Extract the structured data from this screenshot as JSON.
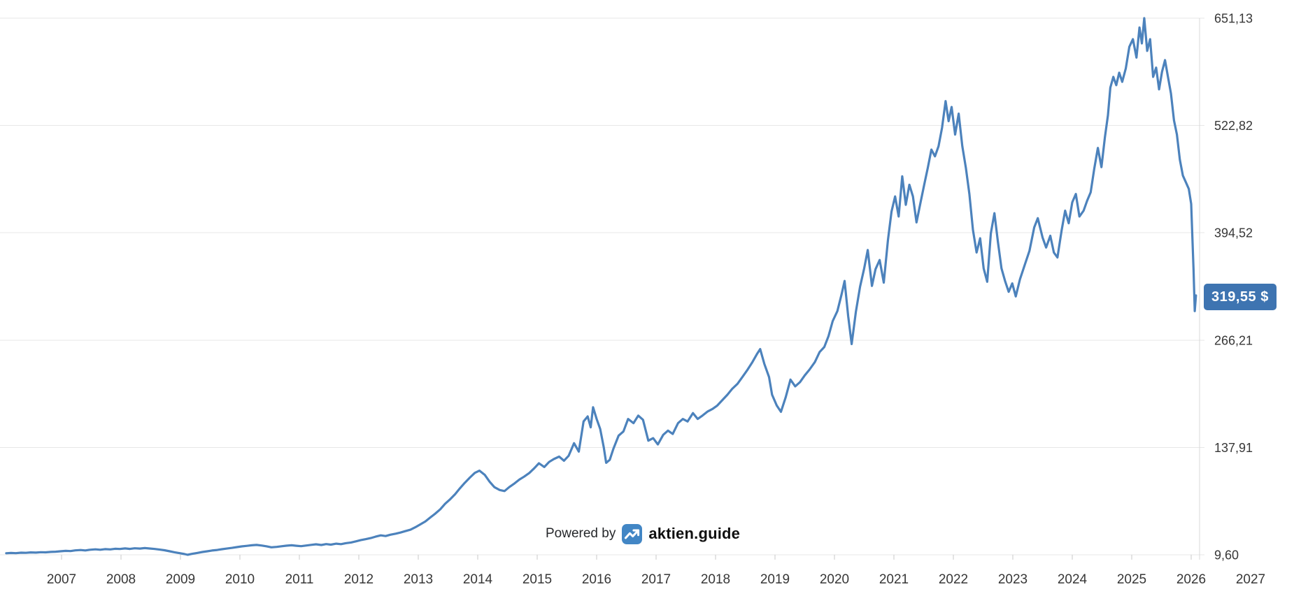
{
  "watermark": {
    "powered_by_label": "Powered by",
    "brand": "aktien.guide"
  },
  "chart_data": {
    "type": "line",
    "title": "",
    "legend": "none",
    "grid": "horizontal-only",
    "last_price_label": "319,55 $",
    "last_price_value": 319.55,
    "x_axis": {
      "tick_labels": [
        "2007",
        "2008",
        "2009",
        "2010",
        "2011",
        "2012",
        "2013",
        "2014",
        "2015",
        "2016",
        "2017",
        "2018",
        "2019",
        "2020",
        "2021",
        "2022",
        "2023",
        "2024",
        "2025",
        "2026",
        "2027"
      ],
      "range_years": [
        2006.0,
        2026.14
      ]
    },
    "y_axis": {
      "side": "right",
      "tick_values": [
        9.6,
        137.91,
        266.21,
        394.52,
        522.82,
        651.13
      ],
      "tick_labels": [
        "9,60",
        "137,91",
        "266,21",
        "394,52",
        "522,82",
        "651,13"
      ]
    },
    "colors": {
      "line": "#4c82bc",
      "badge_bg": "#3e74b1",
      "grid": "#e7e7e7",
      "axis_line": "#d9d9d9",
      "tick": "#c9c9c9",
      "label": "#373737",
      "icon_bg": "#4286c5",
      "icon_glyph": "#ffffff",
      "background": "#ffffff"
    },
    "series": {
      "name": "price",
      "points": [
        [
          2006.07,
          11.4
        ],
        [
          2006.15,
          11.8
        ],
        [
          2006.23,
          11.5
        ],
        [
          2006.32,
          12.1
        ],
        [
          2006.4,
          11.9
        ],
        [
          2006.48,
          12.4
        ],
        [
          2006.57,
          12.2
        ],
        [
          2006.65,
          12.7
        ],
        [
          2006.73,
          12.5
        ],
        [
          2006.82,
          13.0
        ],
        [
          2006.9,
          13.3
        ],
        [
          2006.98,
          13.8
        ],
        [
          2007.07,
          14.3
        ],
        [
          2007.15,
          14.0
        ],
        [
          2007.23,
          14.9
        ],
        [
          2007.32,
          15.3
        ],
        [
          2007.4,
          14.8
        ],
        [
          2007.48,
          15.6
        ],
        [
          2007.57,
          16.1
        ],
        [
          2007.65,
          15.6
        ],
        [
          2007.73,
          16.4
        ],
        [
          2007.82,
          16.0
        ],
        [
          2007.9,
          16.8
        ],
        [
          2007.98,
          16.5
        ],
        [
          2008.07,
          17.2
        ],
        [
          2008.15,
          16.6
        ],
        [
          2008.23,
          17.4
        ],
        [
          2008.32,
          17.0
        ],
        [
          2008.4,
          17.6
        ],
        [
          2008.48,
          17.1
        ],
        [
          2008.57,
          16.5
        ],
        [
          2008.65,
          15.8
        ],
        [
          2008.73,
          15.0
        ],
        [
          2008.82,
          13.8
        ],
        [
          2008.9,
          12.6
        ],
        [
          2008.98,
          11.6
        ],
        [
          2009.07,
          10.4
        ],
        [
          2009.12,
          9.6
        ],
        [
          2009.2,
          10.8
        ],
        [
          2009.28,
          11.8
        ],
        [
          2009.37,
          12.9
        ],
        [
          2009.45,
          13.8
        ],
        [
          2009.53,
          14.7
        ],
        [
          2009.62,
          15.4
        ],
        [
          2009.7,
          16.3
        ],
        [
          2009.78,
          17.0
        ],
        [
          2009.87,
          17.9
        ],
        [
          2009.95,
          18.8
        ],
        [
          2010.03,
          19.6
        ],
        [
          2010.12,
          20.3
        ],
        [
          2010.2,
          21.0
        ],
        [
          2010.28,
          21.4
        ],
        [
          2010.37,
          20.6
        ],
        [
          2010.45,
          19.7
        ],
        [
          2010.53,
          18.5
        ],
        [
          2010.62,
          19.0
        ],
        [
          2010.7,
          19.8
        ],
        [
          2010.78,
          20.5
        ],
        [
          2010.87,
          21.0
        ],
        [
          2010.95,
          20.4
        ],
        [
          2011.03,
          19.9
        ],
        [
          2011.12,
          20.7
        ],
        [
          2011.2,
          21.5
        ],
        [
          2011.28,
          22.1
        ],
        [
          2011.37,
          21.3
        ],
        [
          2011.45,
          22.4
        ],
        [
          2011.53,
          21.7
        ],
        [
          2011.62,
          22.9
        ],
        [
          2011.7,
          22.3
        ],
        [
          2011.78,
          23.5
        ],
        [
          2011.87,
          24.3
        ],
        [
          2011.95,
          25.6
        ],
        [
          2012.03,
          27.1
        ],
        [
          2012.12,
          28.3
        ],
        [
          2012.2,
          29.6
        ],
        [
          2012.28,
          31.2
        ],
        [
          2012.37,
          32.8
        ],
        [
          2012.45,
          32.0
        ],
        [
          2012.53,
          33.6
        ],
        [
          2012.62,
          34.8
        ],
        [
          2012.7,
          36.2
        ],
        [
          2012.78,
          37.8
        ],
        [
          2012.87,
          39.6
        ],
        [
          2012.95,
          42.5
        ],
        [
          2013.03,
          45.8
        ],
        [
          2013.12,
          49.5
        ],
        [
          2013.2,
          54.0
        ],
        [
          2013.28,
          58.5
        ],
        [
          2013.37,
          64.0
        ],
        [
          2013.45,
          70.5
        ],
        [
          2013.53,
          75.5
        ],
        [
          2013.62,
          82.0
        ],
        [
          2013.7,
          89.0
        ],
        [
          2013.78,
          95.5
        ],
        [
          2013.87,
          102.0
        ],
        [
          2013.95,
          107.5
        ],
        [
          2014.03,
          110.2
        ],
        [
          2014.12,
          105.0
        ],
        [
          2014.2,
          97.0
        ],
        [
          2014.28,
          90.5
        ],
        [
          2014.37,
          87.0
        ],
        [
          2014.45,
          85.8
        ],
        [
          2014.53,
          90.5
        ],
        [
          2014.62,
          95.0
        ],
        [
          2014.7,
          99.5
        ],
        [
          2014.78,
          103.0
        ],
        [
          2014.87,
          107.5
        ],
        [
          2014.95,
          113.0
        ],
        [
          2015.03,
          119.0
        ],
        [
          2015.12,
          114.5
        ],
        [
          2015.2,
          120.5
        ],
        [
          2015.28,
          124.0
        ],
        [
          2015.37,
          127.0
        ],
        [
          2015.45,
          122.0
        ],
        [
          2015.53,
          128.0
        ],
        [
          2015.62,
          143.0
        ],
        [
          2015.7,
          133.0
        ],
        [
          2015.78,
          169.0
        ],
        [
          2015.85,
          175.0
        ],
        [
          2015.9,
          162.0
        ],
        [
          2015.94,
          186.0
        ],
        [
          2016.0,
          172.0
        ],
        [
          2016.06,
          160.0
        ],
        [
          2016.12,
          138.0
        ],
        [
          2016.16,
          119.5
        ],
        [
          2016.22,
          123.0
        ],
        [
          2016.28,
          136.0
        ],
        [
          2016.37,
          152.0
        ],
        [
          2016.45,
          157.0
        ],
        [
          2016.53,
          172.0
        ],
        [
          2016.62,
          167.0
        ],
        [
          2016.7,
          176.0
        ],
        [
          2016.78,
          171.0
        ],
        [
          2016.87,
          146.0
        ],
        [
          2016.95,
          149.0
        ],
        [
          2017.03,
          141.5
        ],
        [
          2017.12,
          153.0
        ],
        [
          2017.2,
          158.0
        ],
        [
          2017.28,
          154.0
        ],
        [
          2017.37,
          167.0
        ],
        [
          2017.45,
          172.0
        ],
        [
          2017.53,
          169.0
        ],
        [
          2017.62,
          179.0
        ],
        [
          2017.7,
          172.0
        ],
        [
          2017.78,
          176.0
        ],
        [
          2017.87,
          181.0
        ],
        [
          2017.95,
          184.0
        ],
        [
          2018.03,
          188.0
        ],
        [
          2018.12,
          195.0
        ],
        [
          2018.2,
          201.0
        ],
        [
          2018.28,
          208.0
        ],
        [
          2018.37,
          214.0
        ],
        [
          2018.45,
          222.0
        ],
        [
          2018.53,
          230.0
        ],
        [
          2018.62,
          240.0
        ],
        [
          2018.7,
          250.0
        ],
        [
          2018.75,
          255.5
        ],
        [
          2018.82,
          238.0
        ],
        [
          2018.9,
          222.0
        ],
        [
          2018.95,
          201.0
        ],
        [
          2019.03,
          188.0
        ],
        [
          2019.1,
          180.5
        ],
        [
          2019.18,
          198.0
        ],
        [
          2019.26,
          219.0
        ],
        [
          2019.34,
          211.0
        ],
        [
          2019.42,
          216.0
        ],
        [
          2019.5,
          224.0
        ],
        [
          2019.58,
          231.0
        ],
        [
          2019.67,
          240.0
        ],
        [
          2019.75,
          252.0
        ],
        [
          2019.83,
          258.0
        ],
        [
          2019.9,
          271.0
        ],
        [
          2019.97,
          289.0
        ],
        [
          2020.05,
          301.0
        ],
        [
          2020.12,
          321.0
        ],
        [
          2020.17,
          337.0
        ],
        [
          2020.23,
          295.0
        ],
        [
          2020.29,
          261.5
        ],
        [
          2020.36,
          300.0
        ],
        [
          2020.43,
          330.0
        ],
        [
          2020.5,
          352.0
        ],
        [
          2020.56,
          374.0
        ],
        [
          2020.63,
          331.0
        ],
        [
          2020.69,
          351.0
        ],
        [
          2020.76,
          362.0
        ],
        [
          2020.83,
          335.0
        ],
        [
          2020.9,
          386.0
        ],
        [
          2020.96,
          420.0
        ],
        [
          2021.02,
          438.0
        ],
        [
          2021.08,
          414.0
        ],
        [
          2021.14,
          462.0
        ],
        [
          2021.2,
          428.0
        ],
        [
          2021.26,
          452.0
        ],
        [
          2021.32,
          438.0
        ],
        [
          2021.38,
          407.0
        ],
        [
          2021.44,
          428.0
        ],
        [
          2021.51,
          452.0
        ],
        [
          2021.57,
          472.0
        ],
        [
          2021.63,
          494.0
        ],
        [
          2021.69,
          486.0
        ],
        [
          2021.75,
          498.0
        ],
        [
          2021.81,
          520.0
        ],
        [
          2021.87,
          552.0
        ],
        [
          2021.92,
          528.0
        ],
        [
          2021.97,
          545.0
        ],
        [
          2022.03,
          512.0
        ],
        [
          2022.09,
          537.0
        ],
        [
          2022.15,
          498.0
        ],
        [
          2022.21,
          472.0
        ],
        [
          2022.27,
          441.0
        ],
        [
          2022.33,
          398.0
        ],
        [
          2022.39,
          371.0
        ],
        [
          2022.45,
          388.0
        ],
        [
          2022.51,
          352.0
        ],
        [
          2022.57,
          336.0
        ],
        [
          2022.63,
          394.0
        ],
        [
          2022.69,
          418.0
        ],
        [
          2022.75,
          383.0
        ],
        [
          2022.81,
          352.0
        ],
        [
          2022.87,
          337.0
        ],
        [
          2022.93,
          324.0
        ],
        [
          2022.99,
          334.0
        ],
        [
          2023.05,
          318.5
        ],
        [
          2023.12,
          339.0
        ],
        [
          2023.2,
          356.0
        ],
        [
          2023.28,
          373.0
        ],
        [
          2023.36,
          401.0
        ],
        [
          2023.42,
          412.0
        ],
        [
          2023.5,
          389.0
        ],
        [
          2023.56,
          377.0
        ],
        [
          2023.63,
          391.0
        ],
        [
          2023.69,
          371.0
        ],
        [
          2023.75,
          365.0
        ],
        [
          2023.82,
          397.0
        ],
        [
          2023.88,
          421.0
        ],
        [
          2023.94,
          406.0
        ],
        [
          2024.0,
          431.0
        ],
        [
          2024.06,
          441.0
        ],
        [
          2024.12,
          414.0
        ],
        [
          2024.19,
          421.0
        ],
        [
          2024.25,
          433.0
        ],
        [
          2024.31,
          443.0
        ],
        [
          2024.37,
          471.0
        ],
        [
          2024.43,
          496.0
        ],
        [
          2024.49,
          473.0
        ],
        [
          2024.55,
          509.0
        ],
        [
          2024.6,
          535.0
        ],
        [
          2024.64,
          568.0
        ],
        [
          2024.69,
          581.0
        ],
        [
          2024.74,
          571.0
        ],
        [
          2024.79,
          586.0
        ],
        [
          2024.84,
          575.0
        ],
        [
          2024.9,
          591.0
        ],
        [
          2024.96,
          617.0
        ],
        [
          2025.02,
          626.0
        ],
        [
          2025.08,
          604.0
        ],
        [
          2025.13,
          640.0
        ],
        [
          2025.17,
          621.0
        ],
        [
          2025.21,
          651.1
        ],
        [
          2025.26,
          612.0
        ],
        [
          2025.31,
          626.0
        ],
        [
          2025.36,
          581.0
        ],
        [
          2025.41,
          592.0
        ],
        [
          2025.46,
          566.0
        ],
        [
          2025.51,
          587.0
        ],
        [
          2025.56,
          601.0
        ],
        [
          2025.61,
          581.0
        ],
        [
          2025.66,
          561.0
        ],
        [
          2025.71,
          529.0
        ],
        [
          2025.76,
          512.0
        ],
        [
          2025.81,
          482.0
        ],
        [
          2025.86,
          463.0
        ],
        [
          2025.91,
          455.0
        ],
        [
          2025.96,
          447.0
        ],
        [
          2026.0,
          429.0
        ],
        [
          2026.04,
          350.0
        ],
        [
          2026.06,
          301.0
        ],
        [
          2026.08,
          319.55
        ]
      ]
    }
  }
}
